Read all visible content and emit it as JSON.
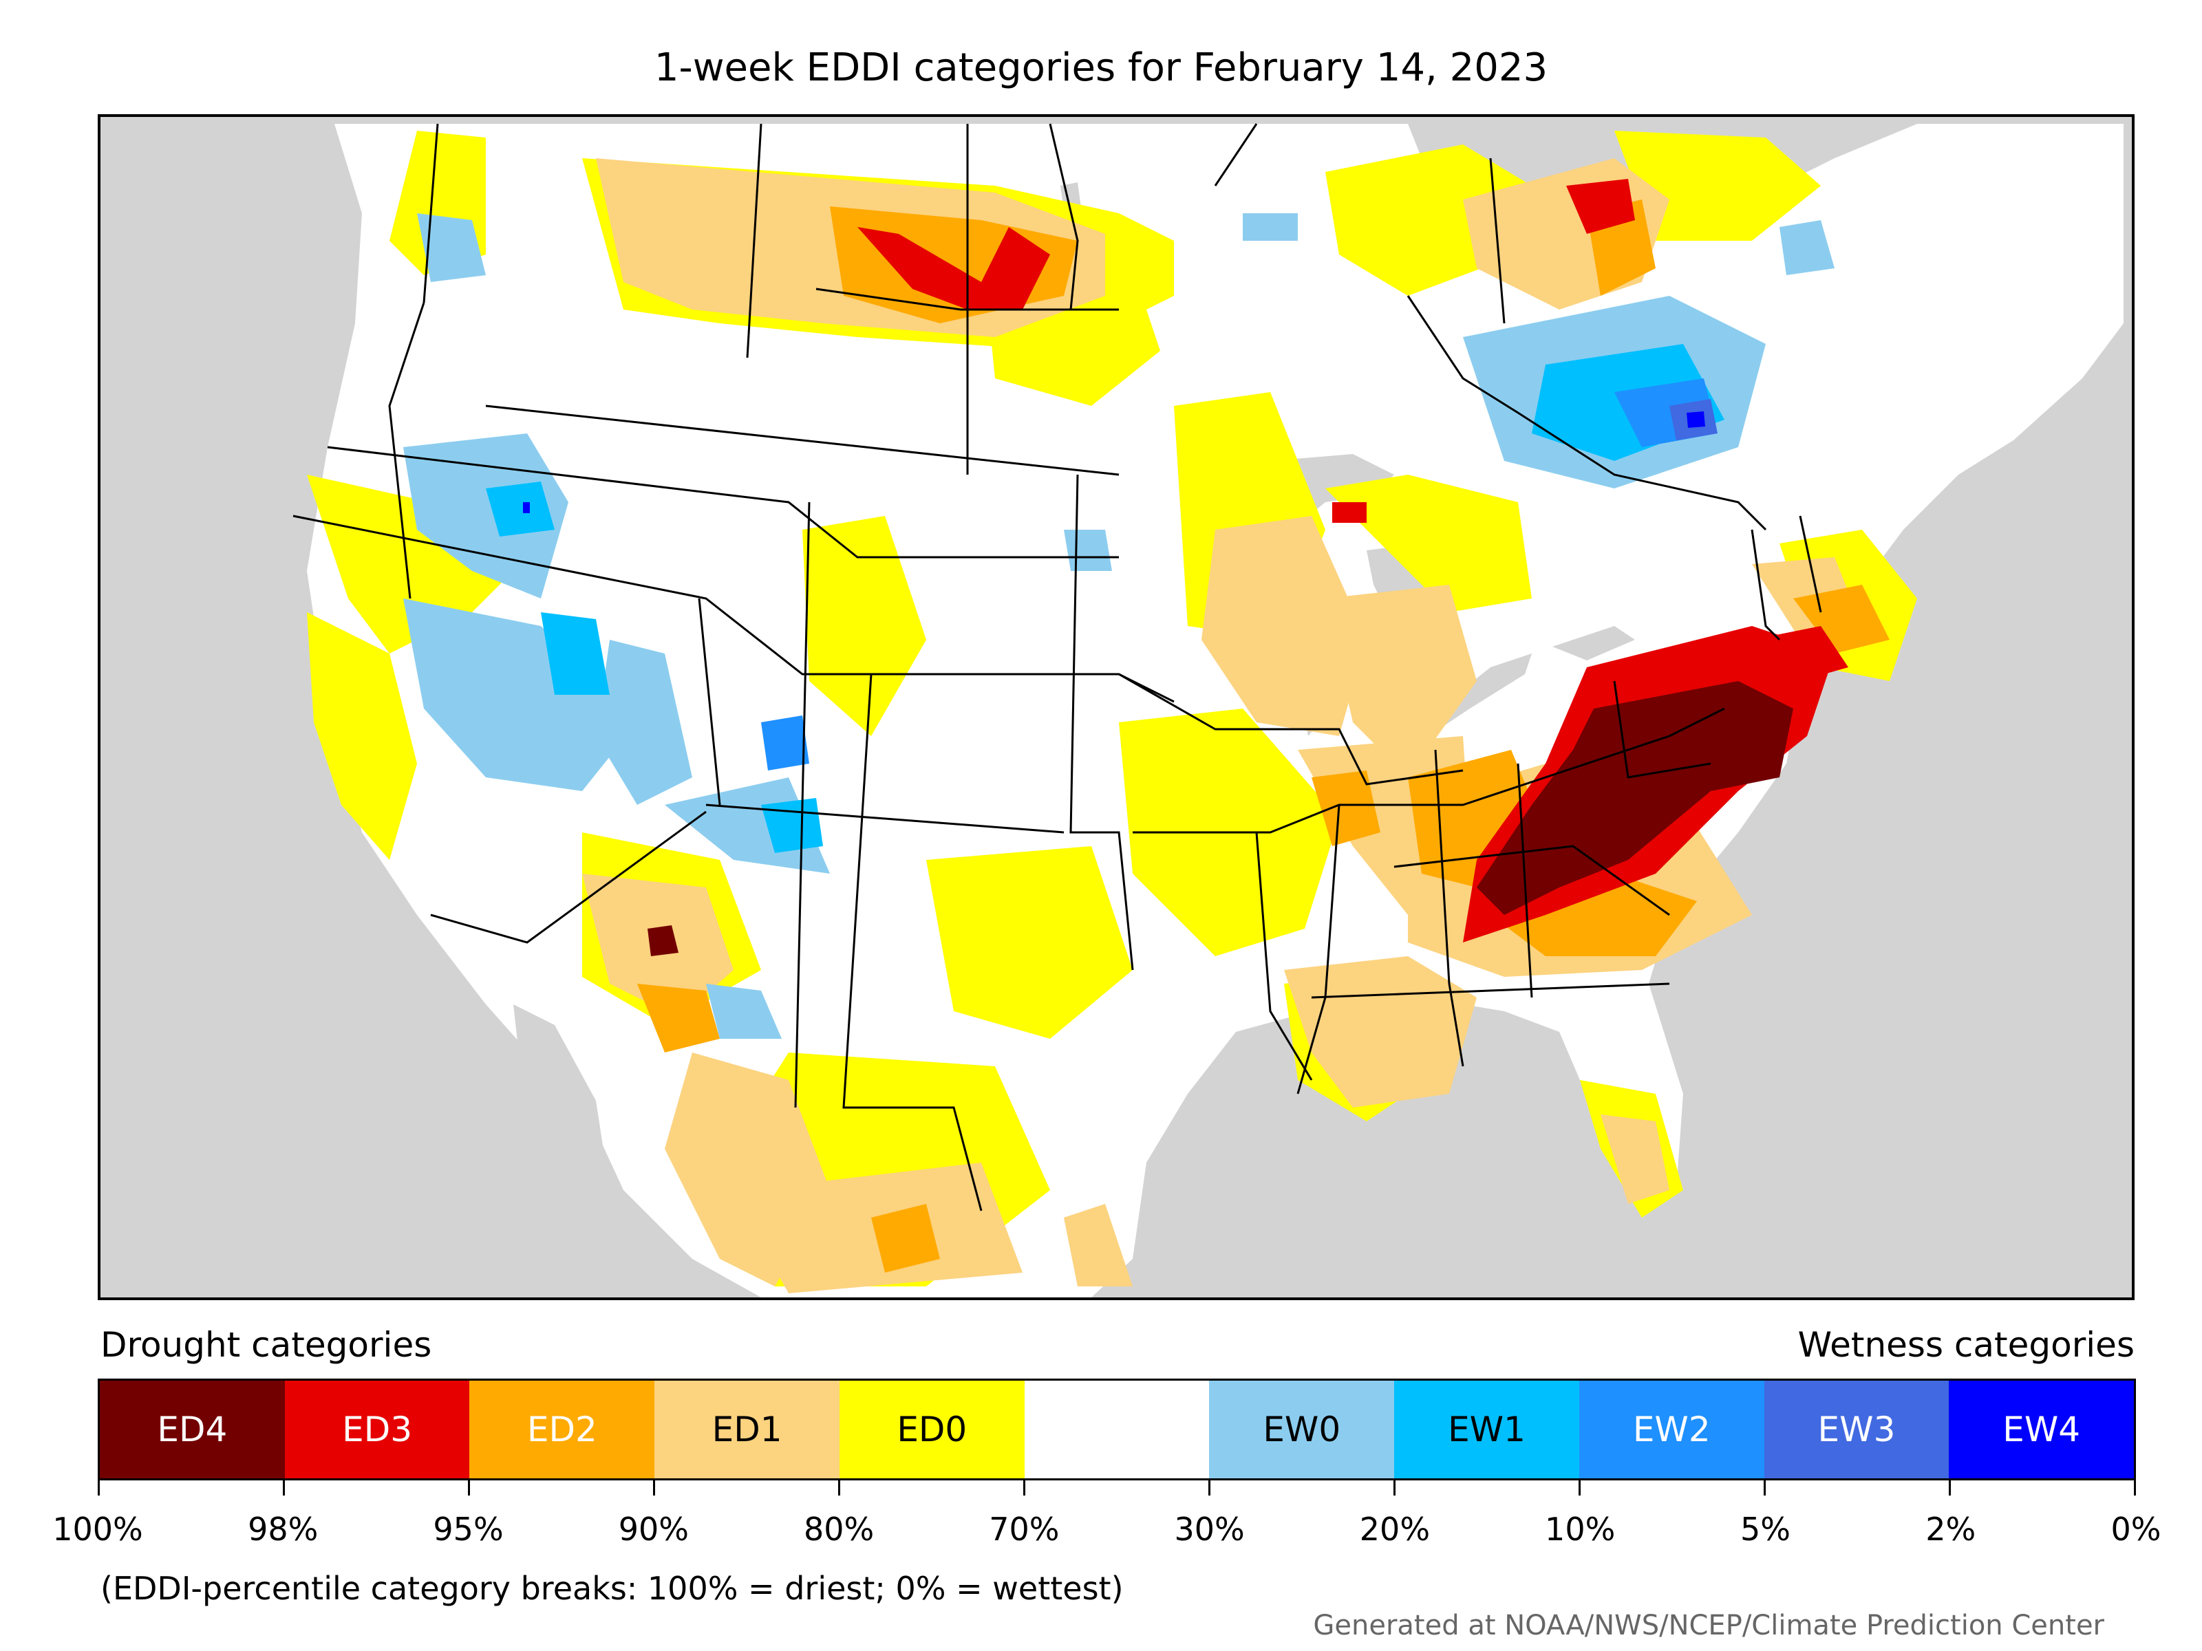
{
  "title": "1-week EDDI categories for February 14, 2023",
  "legend": {
    "drought_heading": "Drought categories",
    "wetness_heading": "Wetness categories",
    "categories": [
      {
        "label": "ED4",
        "color": "#730000",
        "text_color": "#ffffff"
      },
      {
        "label": "ED3",
        "color": "#e60000",
        "text_color": "#ffffff"
      },
      {
        "label": "ED2",
        "color": "#ffaa00",
        "text_color": "#ffffff"
      },
      {
        "label": "ED1",
        "color": "#fcd37f",
        "text_color": "#000000"
      },
      {
        "label": "ED0",
        "color": "#ffff00",
        "text_color": "#000000"
      },
      {
        "label": "",
        "color": "#ffffff",
        "text_color": "#000000"
      },
      {
        "label": "EW0",
        "color": "#8ccdef",
        "text_color": "#000000"
      },
      {
        "label": "EW1",
        "color": "#00bfff",
        "text_color": "#000000"
      },
      {
        "label": "EW2",
        "color": "#1e90ff",
        "text_color": "#ffffff"
      },
      {
        "label": "EW3",
        "color": "#4169e1",
        "text_color": "#ffffff"
      },
      {
        "label": "EW4",
        "color": "#0000ff",
        "text_color": "#ffffff"
      }
    ],
    "ticks": [
      "100%",
      "98%",
      "95%",
      "90%",
      "80%",
      "70%",
      "30%",
      "20%",
      "10%",
      "5%",
      "2%",
      "0%"
    ]
  },
  "footnote": "(EDDI-percentile category breaks: 100% = driest; 0% = wettest)",
  "credit": "Generated at NOAA/NWS/NCEP/Climate Prediction Center",
  "colors": {
    "ocean_bg": "#d3d3d3",
    "land": "#ffffff",
    "ED4": "#730000",
    "ED3": "#e60000",
    "ED2": "#ffaa00",
    "ED1": "#fcd37f",
    "ED0": "#ffff00",
    "EW0": "#8ccdef",
    "EW1": "#00bfff",
    "EW2": "#1e90ff",
    "EW3": "#4169e1",
    "EW4": "#0000ff"
  }
}
